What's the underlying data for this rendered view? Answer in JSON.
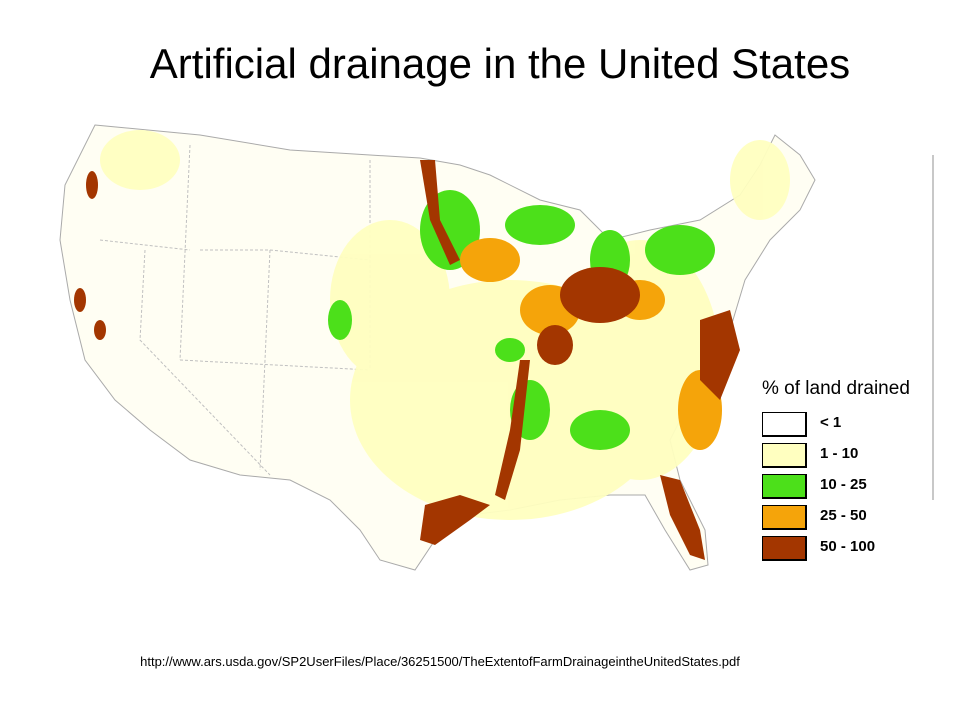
{
  "title": "Artificial drainage in the United States",
  "legend": {
    "title": "% of land drained",
    "items": [
      {
        "label": "< 1",
        "color": "#ffffff"
      },
      {
        "label": "1 - 10",
        "color": "#ffffc0"
      },
      {
        "label": "10 - 25",
        "color": "#4ce01a"
      },
      {
        "label": "25 - 50",
        "color": "#f5a40a"
      },
      {
        "label": "50 - 100",
        "color": "#a33600"
      }
    ]
  },
  "source_url": "http://www.ars.usda.gov/SP2UserFiles/Place/36251500/TheExtentofFarmDrainageintheUnitedStates.pdf"
}
